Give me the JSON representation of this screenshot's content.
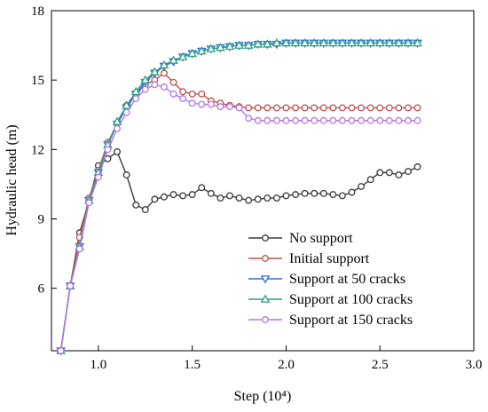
{
  "chart_data": {
    "type": "line",
    "title": "",
    "xlabel": "Step (10⁴)",
    "ylabel": "Hydraulic head (m)",
    "xlim": [
      0.75,
      3.0
    ],
    "ylim": [
      3.3,
      18
    ],
    "xticks": [
      1.0,
      1.5,
      2.0,
      2.5,
      3.0
    ],
    "xtick_labels": [
      "1.0",
      "1.5",
      "2.0",
      "2.5",
      "3.0"
    ],
    "yticks": [
      6,
      9,
      12,
      15,
      18
    ],
    "ytick_labels": [
      "6",
      "9",
      "12",
      "15",
      "18"
    ],
    "grid": false,
    "legend_position": "bottom-right",
    "series": [
      {
        "name": "No support",
        "color": "#3a3a3a",
        "marker": "circle",
        "x": [
          0.8,
          0.85,
          0.9,
          0.95,
          1.0,
          1.05,
          1.1,
          1.15,
          1.2,
          1.25,
          1.3,
          1.35,
          1.4,
          1.45,
          1.5,
          1.55,
          1.6,
          1.65,
          1.7,
          1.75,
          1.8,
          1.85,
          1.9,
          1.95,
          2.0,
          2.05,
          2.1,
          2.15,
          2.2,
          2.25,
          2.3,
          2.35,
          2.4,
          2.45,
          2.5,
          2.55,
          2.6,
          2.65,
          2.7
        ],
        "y": [
          3.3,
          6.1,
          8.4,
          9.8,
          11.3,
          11.6,
          11.9,
          10.9,
          9.6,
          9.4,
          9.85,
          9.95,
          10.05,
          10.0,
          10.05,
          10.35,
          10.1,
          9.9,
          10.0,
          9.9,
          9.8,
          9.85,
          9.9,
          9.9,
          10.0,
          10.05,
          10.1,
          10.1,
          10.1,
          10.05,
          10.0,
          10.15,
          10.4,
          10.7,
          11.0,
          11.0,
          10.9,
          11.05,
          11.25
        ]
      },
      {
        "name": "Initial support",
        "color": "#c0504d",
        "marker": "circle",
        "x": [
          0.8,
          0.85,
          0.9,
          0.95,
          1.0,
          1.05,
          1.1,
          1.15,
          1.2,
          1.25,
          1.3,
          1.35,
          1.4,
          1.45,
          1.5,
          1.55,
          1.6,
          1.65,
          1.7,
          1.75,
          1.8,
          1.85,
          1.9,
          1.95,
          2.0,
          2.05,
          2.1,
          2.15,
          2.2,
          2.25,
          2.3,
          2.35,
          2.4,
          2.45,
          2.5,
          2.55,
          2.6,
          2.65,
          2.7
        ],
        "y": [
          3.3,
          6.1,
          8.2,
          9.9,
          11.1,
          12.3,
          13.1,
          13.9,
          14.4,
          14.8,
          15.0,
          15.3,
          14.9,
          14.5,
          14.4,
          14.4,
          14.1,
          14.0,
          13.9,
          13.85,
          13.8,
          13.8,
          13.8,
          13.8,
          13.8,
          13.8,
          13.8,
          13.8,
          13.8,
          13.8,
          13.8,
          13.8,
          13.8,
          13.8,
          13.8,
          13.8,
          13.8,
          13.8,
          13.8
        ]
      },
      {
        "name": "Support at 50 cracks",
        "color": "#2f6fd6",
        "marker": "triangle-down",
        "x": [
          0.8,
          0.85,
          0.9,
          0.95,
          1.0,
          1.05,
          1.1,
          1.15,
          1.2,
          1.25,
          1.3,
          1.35,
          1.4,
          1.45,
          1.5,
          1.55,
          1.6,
          1.65,
          1.7,
          1.75,
          1.8,
          1.85,
          1.9,
          1.95,
          2.0,
          2.05,
          2.1,
          2.15,
          2.2,
          2.25,
          2.3,
          2.35,
          2.4,
          2.45,
          2.5,
          2.55,
          2.6,
          2.65,
          2.7
        ],
        "y": [
          3.3,
          6.1,
          7.8,
          9.8,
          11.0,
          12.2,
          13.1,
          13.8,
          14.4,
          14.9,
          15.3,
          15.6,
          15.8,
          16.0,
          16.15,
          16.25,
          16.35,
          16.4,
          16.45,
          16.5,
          16.5,
          16.55,
          16.55,
          16.55,
          16.6,
          16.6,
          16.6,
          16.6,
          16.6,
          16.6,
          16.6,
          16.6,
          16.6,
          16.6,
          16.6,
          16.6,
          16.6,
          16.6,
          16.6
        ]
      },
      {
        "name": "Support at 100 cracks",
        "color": "#2aa080",
        "marker": "triangle-up",
        "x": [
          0.8,
          0.85,
          0.9,
          0.95,
          1.0,
          1.05,
          1.1,
          1.15,
          1.2,
          1.25,
          1.3,
          1.35,
          1.4,
          1.45,
          1.5,
          1.55,
          1.6,
          1.65,
          1.7,
          1.75,
          1.8,
          1.85,
          1.9,
          1.95,
          2.0,
          2.05,
          2.1,
          2.15,
          2.2,
          2.25,
          2.3,
          2.35,
          2.4,
          2.45,
          2.5,
          2.55,
          2.6,
          2.65,
          2.7
        ],
        "y": [
          3.3,
          6.1,
          7.8,
          9.8,
          11.0,
          12.2,
          13.2,
          13.9,
          14.5,
          15.0,
          15.35,
          15.65,
          15.85,
          16.0,
          16.15,
          16.25,
          16.35,
          16.4,
          16.45,
          16.5,
          16.5,
          16.55,
          16.55,
          16.6,
          16.6,
          16.6,
          16.6,
          16.6,
          16.6,
          16.6,
          16.6,
          16.6,
          16.6,
          16.6,
          16.6,
          16.6,
          16.6,
          16.6,
          16.6
        ]
      },
      {
        "name": "Support at 150 cracks",
        "color": "#b477e8",
        "marker": "circle",
        "x": [
          0.8,
          0.85,
          0.9,
          0.95,
          1.0,
          1.05,
          1.1,
          1.15,
          1.2,
          1.25,
          1.3,
          1.35,
          1.4,
          1.45,
          1.5,
          1.55,
          1.6,
          1.65,
          1.7,
          1.75,
          1.8,
          1.85,
          1.9,
          1.95,
          2.0,
          2.05,
          2.1,
          2.15,
          2.2,
          2.25,
          2.3,
          2.35,
          2.4,
          2.45,
          2.5,
          2.55,
          2.6,
          2.65,
          2.7
        ],
        "y": [
          3.3,
          6.1,
          7.7,
          9.7,
          10.8,
          12.0,
          12.9,
          13.6,
          14.2,
          14.6,
          14.8,
          14.7,
          14.4,
          14.2,
          14.0,
          13.95,
          13.95,
          13.85,
          13.85,
          13.8,
          13.35,
          13.25,
          13.25,
          13.25,
          13.25,
          13.25,
          13.25,
          13.25,
          13.25,
          13.25,
          13.25,
          13.25,
          13.25,
          13.25,
          13.25,
          13.25,
          13.25,
          13.25,
          13.25
        ]
      }
    ]
  }
}
